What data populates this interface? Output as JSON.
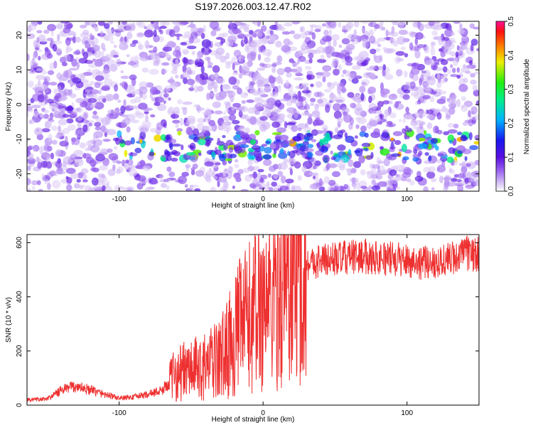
{
  "chart_data": [
    {
      "type": "heatmap",
      "title": "S197.2026.003.12.47.R02",
      "xlabel": "Height of straight line (km)",
      "ylabel": "Frequency (Hz)",
      "xlim": [
        -164,
        150
      ],
      "ylim": [
        -25,
        24
      ],
      "xticks": [
        -100,
        0,
        100
      ],
      "yticks": [
        -20,
        -10,
        0,
        10,
        20
      ],
      "colorbar": {
        "label": "Normalized spectral amplitude",
        "range": [
          0,
          0.5
        ],
        "ticks": [
          0.0,
          0.1,
          0.2,
          0.3,
          0.4,
          0.5
        ]
      },
      "feature": {
        "description": "band",
        "center_frequency": -12,
        "band_width_hz": 4,
        "x_start": -100,
        "peak_amplitude": 0.38
      }
    },
    {
      "type": "line",
      "xlabel": "Height of straight line (km)",
      "ylabel": "SNR (10 * v/v)",
      "xlim": [
        -164,
        150
      ],
      "ylim": [
        0,
        630
      ],
      "xticks": [
        -100,
        0,
        100
      ],
      "yticks": [
        0,
        200,
        400,
        600
      ],
      "series": [
        {
          "name": "SNR",
          "color": "#ee3030",
          "x": [
            -164,
            -150,
            -140,
            -130,
            -120,
            -110,
            -100,
            -90,
            -80,
            -70,
            -60,
            -50,
            -40,
            -30,
            -20,
            -15,
            -10,
            -5,
            0,
            5,
            10,
            15,
            20,
            25,
            30,
            40,
            50,
            60,
            70,
            80,
            90,
            100,
            110,
            120,
            130,
            140,
            150
          ],
          "values": [
            20,
            22,
            55,
            70,
            55,
            40,
            25,
            30,
            40,
            55,
            120,
            130,
            140,
            170,
            250,
            300,
            320,
            350,
            380,
            400,
            430,
            460,
            480,
            500,
            520,
            535,
            540,
            545,
            550,
            545,
            540,
            535,
            525,
            530,
            540,
            560,
            555
          ]
        }
      ]
    }
  ]
}
